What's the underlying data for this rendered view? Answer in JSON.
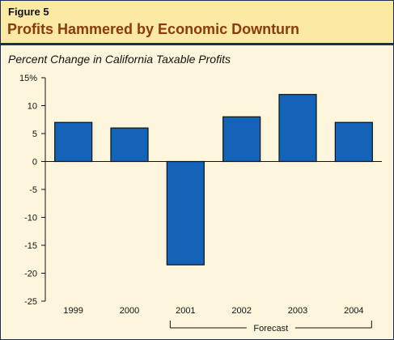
{
  "figure": {
    "label": "Figure 5",
    "title": "Profits Hammered by Economic Downturn"
  },
  "chart_data": {
    "type": "bar",
    "title": "Percent Change in California Taxable Profits",
    "categories": [
      "1999",
      "2000",
      "2001",
      "2002",
      "2003",
      "2004"
    ],
    "values": [
      7,
      6,
      -18.5,
      8,
      12,
      7
    ],
    "yticks": [
      "15%",
      "10",
      "5",
      "0",
      "-5",
      "-10",
      "-15",
      "-20",
      "-25"
    ],
    "ylim": [
      -25,
      15
    ],
    "grid": false,
    "bar_color": "#1463b8",
    "annotation": {
      "text": "Forecast",
      "spans": [
        "2001",
        "2004"
      ]
    }
  }
}
